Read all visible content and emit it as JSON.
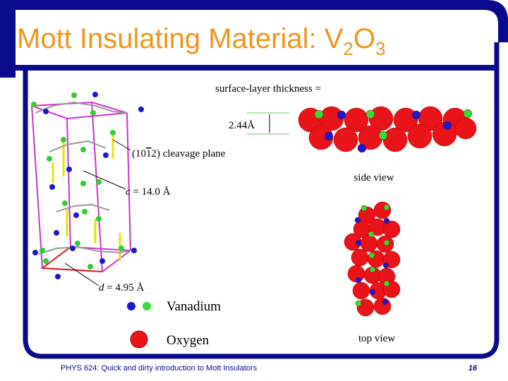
{
  "header": {
    "title": [
      "Mott Insulating Material: V",
      "2",
      "O",
      "3"
    ]
  },
  "figure": {
    "surface_label": "surface-layer thickness =",
    "thickness": "2.44Å",
    "cleavage_plane": [
      "(10",
      "1",
      "2) cleavage plane"
    ],
    "c_axis": [
      "c",
      "= 14.0 Å"
    ],
    "d_axis": [
      "d",
      "= 4.95 Å"
    ],
    "side_view": "side view",
    "top_view": "top view"
  },
  "legend": {
    "vanadium": "Vanadium",
    "oxygen": "Oxygen"
  },
  "footer": {
    "course": "PHYS 624: Quick and dirty introduction to Mott Insulators",
    "page": "16"
  }
}
